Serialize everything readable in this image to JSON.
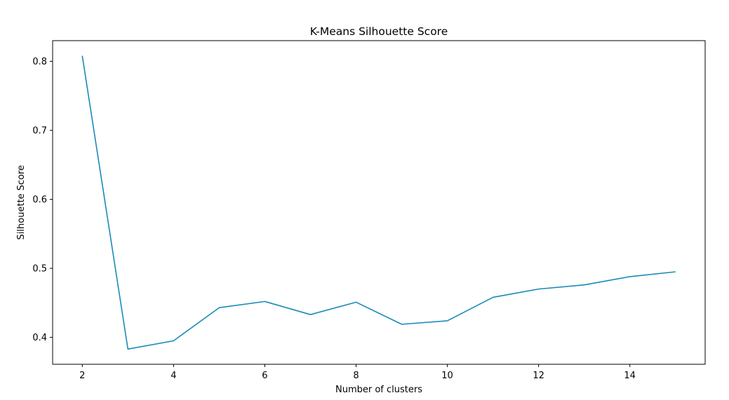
{
  "chart_data": {
    "type": "line",
    "title": "K-Means Silhouette Score",
    "xlabel": "Number of clusters",
    "ylabel": "Silhouette Score",
    "x": [
      2,
      3,
      4,
      5,
      6,
      7,
      8,
      9,
      10,
      11,
      12,
      13,
      14,
      15
    ],
    "series": [
      {
        "values": [
          0.808,
          0.383,
          0.395,
          0.443,
          0.452,
          0.433,
          0.451,
          0.419,
          0.424,
          0.458,
          0.47,
          0.476,
          0.488,
          0.495
        ],
        "color": "#1a8ab8"
      }
    ],
    "xlim": [
      1.35,
      15.65
    ],
    "ylim": [
      0.361,
      0.83
    ],
    "xticks": [
      2,
      4,
      6,
      8,
      10,
      12,
      14
    ],
    "yticks": [
      0.4,
      0.5,
      0.6,
      0.7,
      0.8
    ],
    "grid": false,
    "legend": "none"
  }
}
